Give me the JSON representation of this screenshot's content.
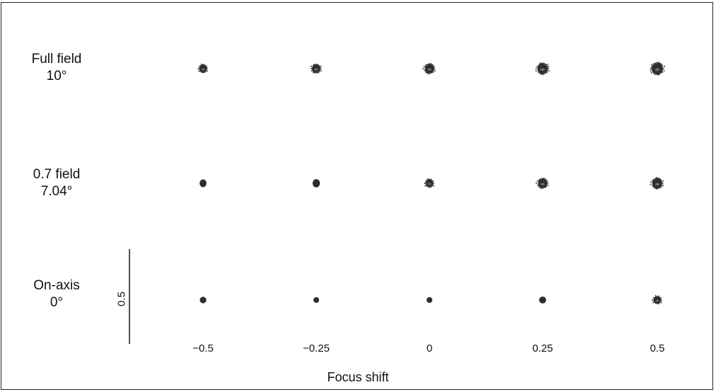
{
  "figure": {
    "rows": [
      {
        "line1": "Full field",
        "line2": "10°"
      },
      {
        "line1": "0.7 field",
        "line2": "7.04°"
      },
      {
        "line1": "On-axis",
        "line2": "0°"
      }
    ],
    "columns": [
      "−0.5",
      "−0.25",
      "0",
      "0.25",
      "0.5"
    ],
    "x_axis_title": "Focus shift",
    "scale_bar_label": "0.5",
    "spot_color": "#2e2e2e",
    "frame_color": "#222222"
  },
  "chart_data": {
    "type": "scatter",
    "xlabel": "Focus shift",
    "x": [
      -0.5,
      -0.25,
      0,
      0.25,
      0.5
    ],
    "series": [
      {
        "name": "Full field 10°",
        "relative_spot_size": [
          0.55,
          0.65,
          0.75,
          0.9,
          1.0
        ]
      },
      {
        "name": "0.7 field 7.04°",
        "relative_spot_size": [
          0.45,
          0.5,
          0.55,
          0.75,
          0.85
        ]
      },
      {
        "name": "On-axis 0°",
        "relative_spot_size": [
          0.4,
          0.3,
          0.3,
          0.45,
          0.55
        ]
      }
    ]
  }
}
